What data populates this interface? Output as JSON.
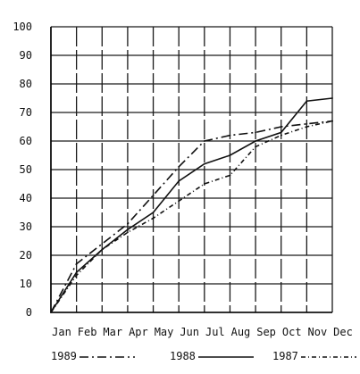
{
  "chart_data": {
    "type": "line",
    "title": "",
    "xlabel": "",
    "ylabel": "",
    "categories": [
      "Jan",
      "Feb",
      "Mar",
      "Apr",
      "May",
      "Jun",
      "Jul",
      "Aug",
      "Sep",
      "Oct",
      "Nov",
      "Dec"
    ],
    "ylim": [
      0,
      100
    ],
    "yticks": [
      0,
      10,
      20,
      30,
      40,
      50,
      60,
      70,
      80,
      90,
      100
    ],
    "grid": true,
    "legend_position": "bottom",
    "series": [
      {
        "name": "1989",
        "style": "dash-dot",
        "color": "#111111",
        "values": [
          0,
          17,
          24,
          31,
          41,
          51,
          60,
          62,
          63,
          65,
          66,
          67
        ]
      },
      {
        "name": "1988",
        "style": "solid",
        "color": "#111111",
        "values": [
          0,
          14,
          22,
          29,
          35,
          46,
          52,
          55,
          60,
          63,
          74,
          75
        ]
      },
      {
        "name": "1987",
        "style": "dash-slash",
        "color": "#111111",
        "values": [
          0,
          13,
          22,
          28,
          33,
          39,
          45,
          48,
          58,
          62,
          65,
          67
        ]
      }
    ]
  }
}
